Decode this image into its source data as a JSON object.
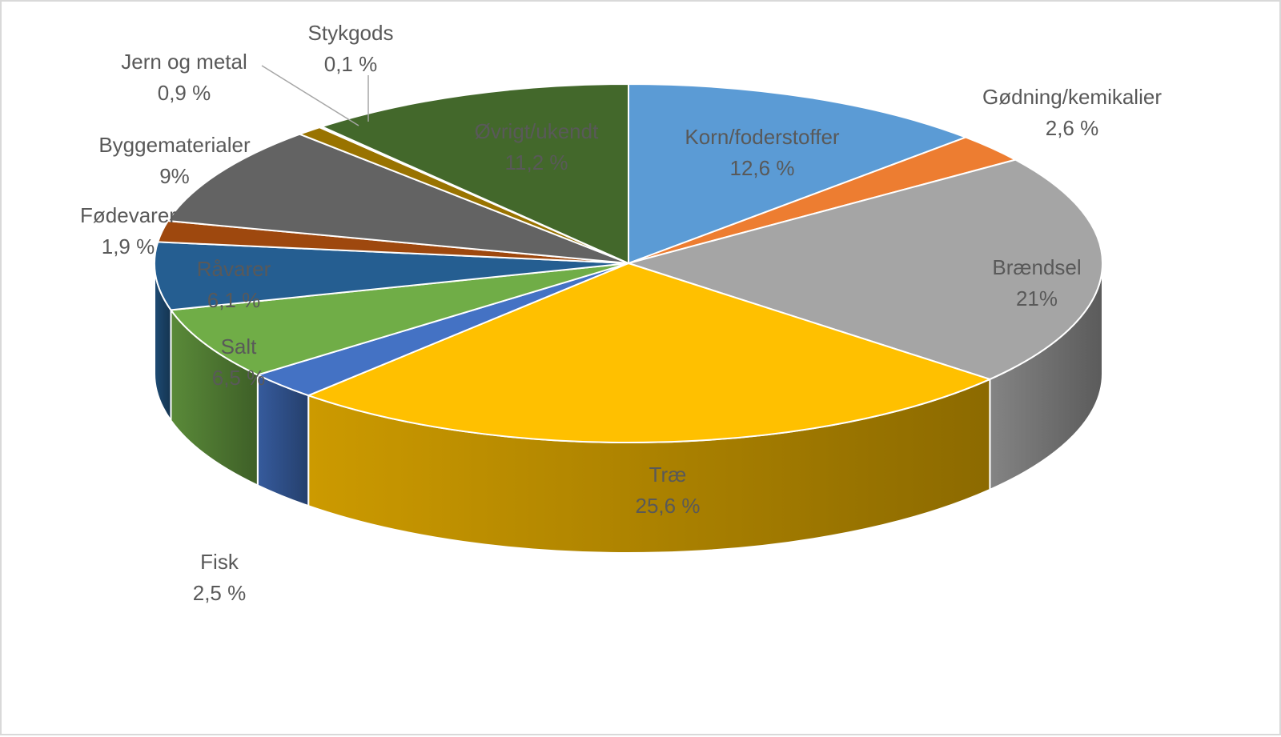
{
  "chart_data": {
    "type": "pie",
    "style": "3d",
    "slices": [
      {
        "name": "Korn/foderstoffer",
        "label": "12,6 %",
        "value": 12.6,
        "color": "#5b9bd5",
        "label_inside": true
      },
      {
        "name": "Gødning/kemikalier",
        "label": "2,6 %",
        "value": 2.6,
        "color": "#ed7d31",
        "label_inside": false
      },
      {
        "name": "Brændsel",
        "label": "21%",
        "value": 21.0,
        "color": "#a5a5a5",
        "label_inside": true
      },
      {
        "name": "Træ",
        "label": "25,6 %",
        "value": 25.6,
        "color": "#ffc000",
        "label_inside": true
      },
      {
        "name": "Fisk",
        "label": "2,5 %",
        "value": 2.5,
        "color": "#4472c4",
        "label_inside": false
      },
      {
        "name": "Salt",
        "label": "6,5 %",
        "value": 6.5,
        "color": "#70ad47",
        "label_inside": true
      },
      {
        "name": "Råvarer",
        "label": "6,1 %",
        "value": 6.1,
        "color": "#255e91",
        "label_inside": true
      },
      {
        "name": "Fødevarer",
        "label": "1,9 %",
        "value": 1.9,
        "color": "#9e480e",
        "label_inside": false
      },
      {
        "name": "Byggematerialer",
        "label": "9%",
        "value": 9.0,
        "color": "#636363",
        "label_inside": false
      },
      {
        "name": "Jern og metal",
        "label": "0,9 %",
        "value": 0.9,
        "color": "#997300",
        "label_inside": false
      },
      {
        "name": "Stykgods",
        "label": "0,1 %",
        "value": 0.1,
        "color": "#264478",
        "label_inside": false
      },
      {
        "name": "Øvrigt/ukendt",
        "label": "11,2 %",
        "value": 11.2,
        "color": "#43682b",
        "label_inside": true
      }
    ],
    "start": "top",
    "direction": "clockwise",
    "legend": "none"
  }
}
